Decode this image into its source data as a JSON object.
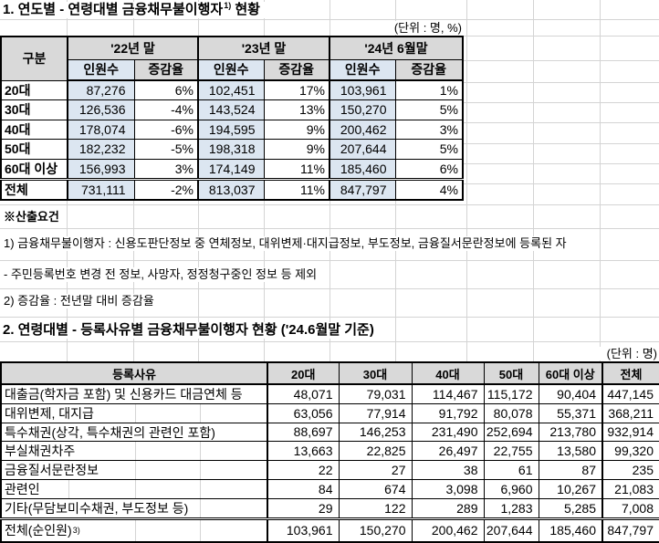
{
  "section1": {
    "title_main": "1. 연도별 - 연령대별 금융채무불이행자",
    "title_sup": "1)",
    "title_tail": " 현황",
    "unit": "(단위 : 명, %)",
    "table": {
      "corner": "구분",
      "periods": [
        "'22년 말",
        "'23년 말",
        "'24년 6월말"
      ],
      "sub": [
        "인원수",
        "증감율"
      ],
      "rows": [
        [
          "20대",
          "87,276",
          "6%",
          "102,451",
          "17%",
          "103,961",
          "1%"
        ],
        [
          "30대",
          "126,536",
          "-4%",
          "143,524",
          "13%",
          "150,270",
          "5%"
        ],
        [
          "40대",
          "178,074",
          "-6%",
          "194,595",
          "9%",
          "200,462",
          "3%"
        ],
        [
          "50대",
          "182,232",
          "-5%",
          "198,318",
          "9%",
          "207,644",
          "5%"
        ],
        [
          "60대 이상",
          "156,993",
          "3%",
          "174,149",
          "11%",
          "185,460",
          "6%"
        ]
      ],
      "total": [
        "전체",
        "731,111",
        "-2%",
        "813,037",
        "11%",
        "847,797",
        "4%"
      ]
    },
    "notes_heading": "※산출요건",
    "notes": [
      "1) 금융채무불이행자 : 신용도판단정보 중 연체정보, 대위변제·대지급정보, 부도정보, 금융질서문란정보에 등록된 자",
      "- 주민등록번호 변경 전 정보, 사망자, 정정청구중인 정보 등 제외",
      "2) 증감율 : 전년말 대비 증감율"
    ]
  },
  "section2": {
    "title": "2. 연령대별 - 등록사유별 금융채무불이행자 현황 ('24.6월말 기준)",
    "unit": "(단위 : 명)",
    "table": {
      "headers": [
        "등록사유",
        "20대",
        "30대",
        "40대",
        "50대",
        "60대 이상",
        "전체"
      ],
      "rows": [
        [
          "대출금(학자금 포함) 및 신용카드 대금연체 등",
          "48,071",
          "79,031",
          "114,467",
          "115,172",
          "90,404",
          "447,145"
        ],
        [
          "대위변제, 대지급",
          "63,056",
          "77,914",
          "91,792",
          "80,078",
          "55,371",
          "368,211"
        ],
        [
          "특수채권(상각, 특수채권의 관련인 포함)",
          "88,697",
          "146,253",
          "231,490",
          "252,694",
          "213,780",
          "932,914"
        ],
        [
          "부실채권차주",
          "13,663",
          "22,825",
          "26,497",
          "22,755",
          "13,580",
          "99,320"
        ],
        [
          "금융질서문란정보",
          "22",
          "27",
          "38",
          "61",
          "87",
          "235"
        ],
        [
          "관련인",
          "84",
          "674",
          "3,098",
          "6,960",
          "10,267",
          "21,083"
        ],
        [
          "기타(무담보미수채권, 부도정보 등)",
          "29",
          "122",
          "289",
          "1,283",
          "5,285",
          "7,008"
        ]
      ],
      "total_label": "전체(순인원)",
      "total_sup": "3)",
      "total": [
        "103,961",
        "150,270",
        "200,462",
        "207,644",
        "185,460",
        "847,797"
      ]
    }
  },
  "colors": {
    "header_gray": "#d9d9d9",
    "count_blue": "#dce6f1",
    "grid_line": "#d4d4d4",
    "border": "#000000"
  }
}
